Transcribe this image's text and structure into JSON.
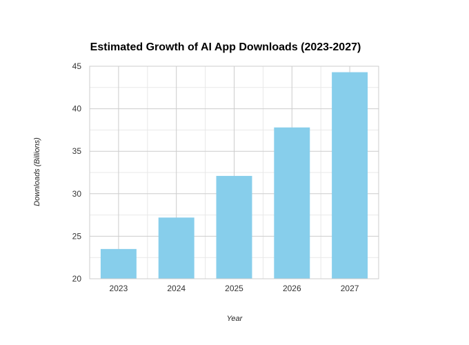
{
  "chart_data": {
    "type": "bar",
    "title": "Estimated Growth of AI App Downloads (2023-2027)",
    "xlabel": "Year",
    "ylabel": "Downloads (Billions)",
    "categories": [
      "2023",
      "2024",
      "2025",
      "2026",
      "2027"
    ],
    "values": [
      23.5,
      27.2,
      32.1,
      37.8,
      44.3
    ],
    "ylim": [
      20,
      45
    ],
    "yticks": [
      20,
      25,
      30,
      35,
      40,
      45
    ],
    "grid": true,
    "legend": "none",
    "bar_color": "#87CEEB",
    "grid_color": "#cccccc",
    "minor_grid_color": "#e8e8e8"
  }
}
